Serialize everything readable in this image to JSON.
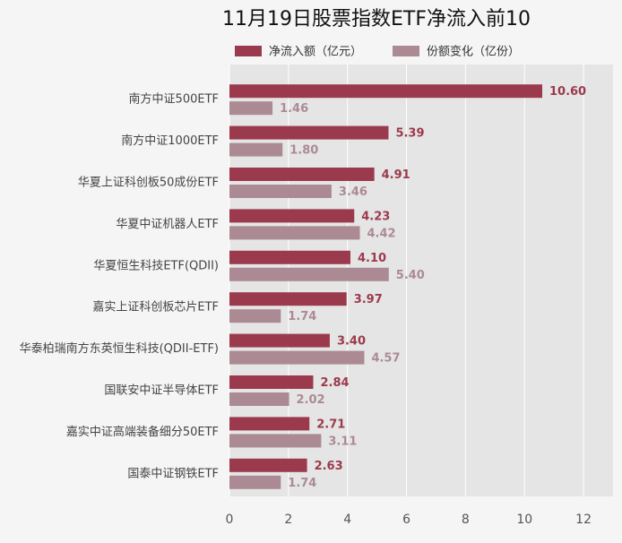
{
  "chart_data": {
    "type": "hbar",
    "title": "11月19日股票指数ETF净流入前10",
    "categories": [
      "南方中证500ETF",
      "南方中证1000ETF",
      "华夏上证科创板50成份ETF",
      "华夏中证机器人ETF",
      "华夏恒生科技ETF(QDII)",
      "嘉实上证科创板芯片ETF",
      "华泰柏瑞南方东英恒生科技(QDII-ETF)",
      "国联安中证半导体ETF",
      "嘉实中证高端装备细分50ETF",
      "国泰中证钢铁ETF"
    ],
    "series": [
      {
        "name": "净流入额（亿元）",
        "color": "#9b3a4c",
        "values": [
          10.6,
          5.39,
          4.91,
          4.23,
          4.1,
          3.97,
          3.4,
          2.84,
          2.71,
          2.63
        ],
        "value_labels": [
          "10.60",
          "5.39",
          "4.91",
          "4.23",
          "4.10",
          "3.97",
          "3.40",
          "2.84",
          "2.71",
          "2.63"
        ]
      },
      {
        "name": "份额变化（亿份）",
        "color": "#ab8a93",
        "values": [
          1.46,
          1.8,
          3.46,
          4.42,
          5.4,
          1.74,
          4.57,
          2.02,
          3.11,
          1.74
        ],
        "value_labels": [
          "1.46",
          "1.80",
          "3.46",
          "4.42",
          "5.40",
          "1.74",
          "4.57",
          "2.02",
          "3.11",
          "1.74"
        ]
      }
    ],
    "xlim": [
      0,
      13
    ],
    "xticks": [
      0,
      2,
      4,
      6,
      8,
      10,
      12
    ],
    "grid": true
  }
}
